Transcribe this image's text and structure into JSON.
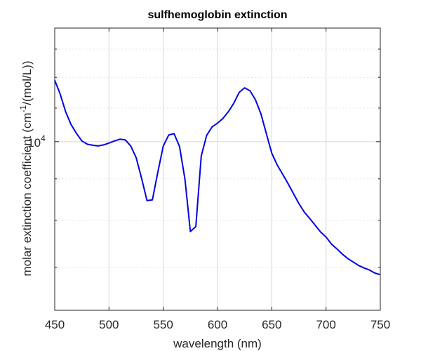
{
  "chart_data": {
    "type": "line",
    "title": "sulfhemoglobin extinction",
    "xlabel": "wavelength (nm)",
    "ylabel_prefix": "molar extinction coefficient (cm",
    "ylabel_sup": "-1",
    "ylabel_suffix": "/(mol/L))",
    "xlim": [
      450,
      750
    ],
    "ylim": [
      6200,
      13800
    ],
    "y_scale": "log",
    "grid": true,
    "x_ticks": [
      450,
      500,
      550,
      600,
      650,
      700,
      750
    ],
    "x_tick_labels": [
      "450",
      "500",
      "550",
      "600",
      "650",
      "700",
      "750"
    ],
    "y_ticks": [
      10000
    ],
    "y_tick_base": "10",
    "y_tick_exp": "4",
    "y_minor_ticks": [
      7000,
      8000,
      9000,
      11000,
      12000,
      13000
    ],
    "line_color": "#0000e6",
    "series": [
      {
        "x": [
          450,
          455,
          460,
          465,
          470,
          475,
          480,
          485,
          490,
          495,
          500,
          505,
          510,
          515,
          520,
          525,
          530,
          535,
          540,
          545,
          550,
          555,
          560,
          565,
          570,
          575,
          580,
          585,
          590,
          595,
          600,
          605,
          610,
          615,
          620,
          625,
          630,
          635,
          640,
          645,
          650,
          655,
          660,
          665,
          670,
          675,
          680,
          685,
          690,
          695,
          700,
          705,
          710,
          715,
          720,
          725,
          730,
          735,
          740,
          745,
          750
        ],
        "y": [
          11900,
          11450,
          10890,
          10500,
          10240,
          10020,
          9930,
          9900,
          9880,
          9910,
          9960,
          10020,
          10070,
          10050,
          9880,
          9560,
          9020,
          8460,
          8480,
          9170,
          9880,
          10190,
          10230,
          9860,
          8990,
          7750,
          7860,
          9600,
          10180,
          10430,
          10540,
          10680,
          10890,
          11150,
          11500,
          11650,
          11550,
          11260,
          10820,
          10230,
          9680,
          9360,
          9120,
          8880,
          8630,
          8390,
          8190,
          8040,
          7890,
          7740,
          7630,
          7480,
          7380,
          7270,
          7180,
          7110,
          7040,
          6990,
          6950,
          6890,
          6860
        ]
      }
    ]
  }
}
